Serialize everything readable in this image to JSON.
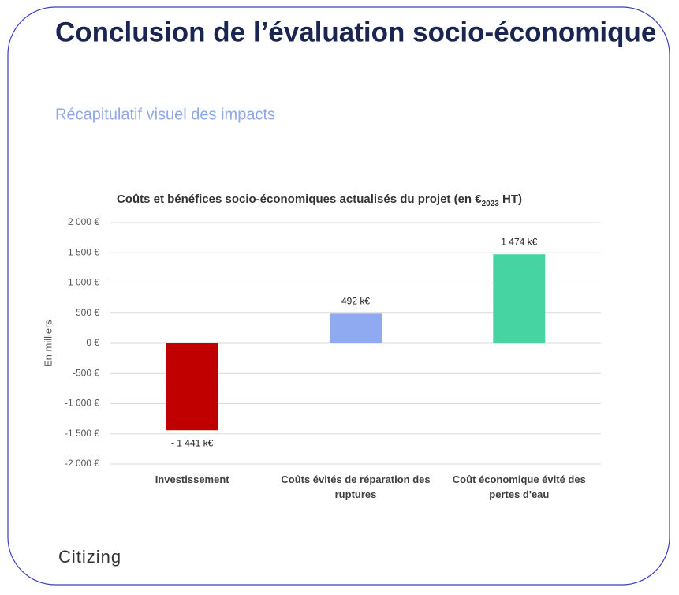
{
  "slide": {
    "title": "Conclusion de l’évaluation socio-économique",
    "subtitle": "Récapitulatif visuel des impacts",
    "logo": "Citizing"
  },
  "chart_data": {
    "type": "bar",
    "title": [
      "Coûts et bénéfices socio-économiques actualisés du projet (en €",
      "2023",
      " HT)"
    ],
    "y_label": "En milliers",
    "categories": [
      "Investissement",
      "Coûts évités de réparation des ruptures",
      "Coût économique évité des pertes d'eau"
    ],
    "values": [
      -1441,
      492,
      1474
    ],
    "value_labels": [
      "- 1 441 k€",
      "492 k€",
      "1 474 k€"
    ],
    "colors": [
      "#c00000",
      "#8faaf0",
      "#47d4a3"
    ],
    "ylim": [
      -2000,
      2000
    ],
    "yticks": [
      {
        "value": 2000,
        "label": "2 000 €"
      },
      {
        "value": 1500,
        "label": "1 500 €"
      },
      {
        "value": 1000,
        "label": "1 000 €"
      },
      {
        "value": 500,
        "label": "500 €"
      },
      {
        "value": 0,
        "label": "0 €"
      },
      {
        "value": -500,
        "label": "-500 €"
      },
      {
        "value": -1000,
        "label": "-1 000 €"
      },
      {
        "value": -1500,
        "label": "-1 500 €"
      },
      {
        "value": -2000,
        "label": "-2 000 €"
      }
    ],
    "grid": true
  }
}
